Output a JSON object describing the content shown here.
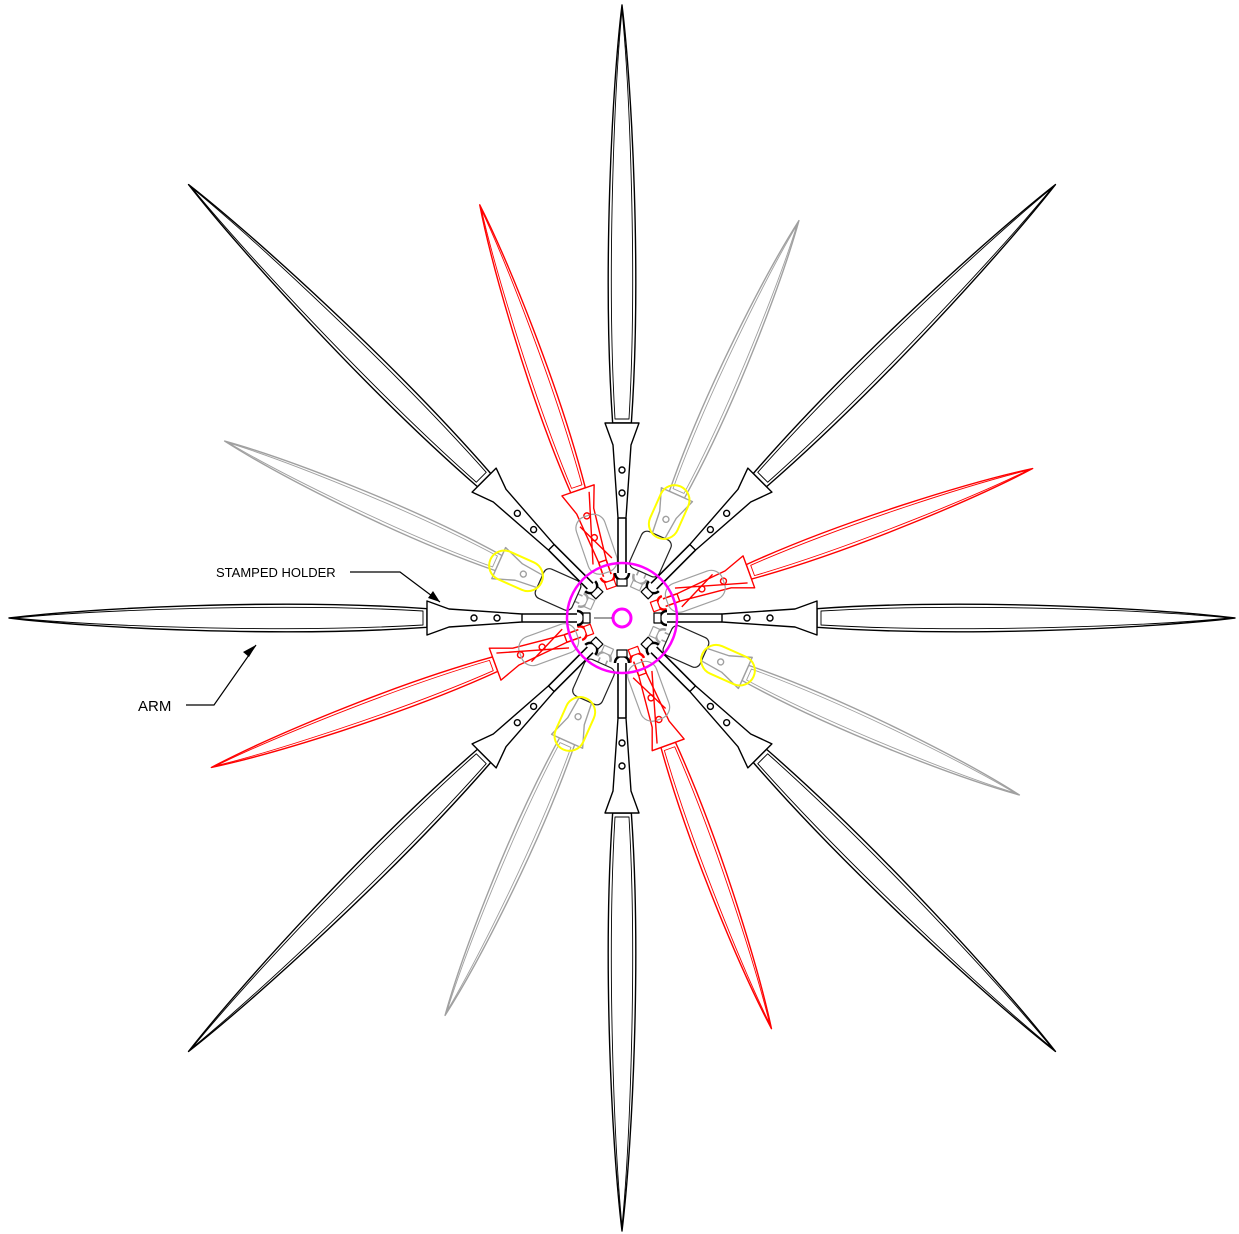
{
  "labels": {
    "stamped_holder": "STAMPED HOLDER",
    "arm": "ARM"
  },
  "colors": {
    "black_layer": "#000000",
    "red_layer": "#ff0000",
    "gray_layer": "#a0a0a0",
    "yellow_layer": "#ffff00",
    "hub_ring": "#ff00ff"
  },
  "arms": [
    {
      "name": "arm-black-0",
      "angle_deg": 0,
      "color": "black",
      "holder": "stamped"
    },
    {
      "name": "arm-black-45",
      "angle_deg": 45,
      "color": "black",
      "holder": "stamped"
    },
    {
      "name": "arm-black-90",
      "angle_deg": 90,
      "color": "black",
      "holder": "stamped"
    },
    {
      "name": "arm-black-135",
      "angle_deg": 135,
      "color": "black",
      "holder": "stamped"
    },
    {
      "name": "arm-black-180",
      "angle_deg": 180,
      "color": "black",
      "holder": "stamped"
    },
    {
      "name": "arm-black-225",
      "angle_deg": 225,
      "color": "black",
      "holder": "stamped"
    },
    {
      "name": "arm-black-270",
      "angle_deg": 270,
      "color": "black",
      "holder": "stamped"
    },
    {
      "name": "arm-black-315",
      "angle_deg": 315,
      "color": "black",
      "holder": "stamped"
    },
    {
      "name": "arm-red-20",
      "angle_deg": 20,
      "color": "red",
      "holder": "socket"
    },
    {
      "name": "arm-red-109",
      "angle_deg": 109,
      "color": "red",
      "holder": "socket"
    },
    {
      "name": "arm-red-200",
      "angle_deg": 200,
      "color": "red",
      "holder": "socket"
    },
    {
      "name": "arm-red-290",
      "angle_deg": 290,
      "color": "red",
      "holder": "socket"
    },
    {
      "name": "arm-gray-66",
      "angle_deg": 66,
      "color": "gray",
      "holder": "sleeve"
    },
    {
      "name": "arm-gray-156",
      "angle_deg": 156,
      "color": "gray",
      "holder": "sleeve"
    },
    {
      "name": "arm-gray-246",
      "angle_deg": 246,
      "color": "gray",
      "holder": "sleeve"
    },
    {
      "name": "arm-gray-336",
      "angle_deg": 336,
      "color": "gray",
      "holder": "sleeve"
    }
  ]
}
